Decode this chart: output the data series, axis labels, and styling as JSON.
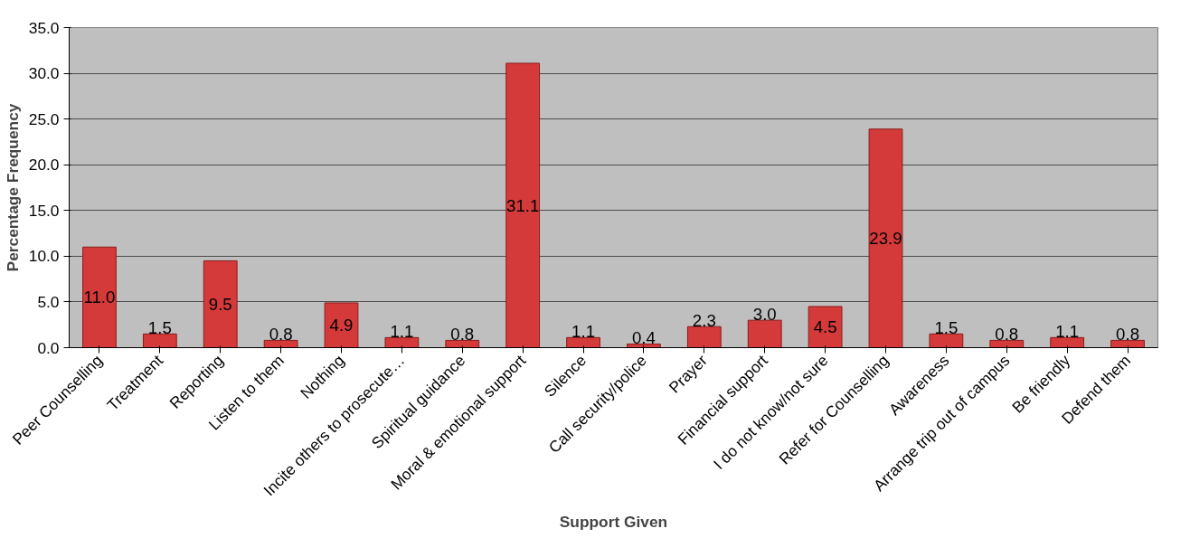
{
  "chart_data": {
    "type": "bar",
    "xlabel": "Support Given",
    "ylabel": "Percentage Frequency",
    "categories": [
      "Peer Counselling",
      "Treatment",
      "Reporting",
      "Listen to them",
      "Nothing",
      "Incite others to prosecute…",
      "Spiritual guidance",
      "Moral & emotional support",
      "Silence",
      "Call security/police",
      "Prayer",
      "Financial support",
      "I do not know/not sure",
      "Refer for Counselling",
      "Awareness",
      "Arrange trip out of campus",
      "Be friendly",
      "Defend them"
    ],
    "values": [
      11.0,
      1.5,
      9.5,
      0.8,
      4.9,
      1.1,
      0.8,
      31.1,
      1.1,
      0.4,
      2.3,
      3.0,
      4.5,
      23.9,
      1.5,
      0.8,
      1.1,
      0.8
    ],
    "color": "#d43a3a",
    "ylim": [
      0,
      35
    ],
    "yticks": [
      {
        "value": 0,
        "label": "0.0"
      },
      {
        "value": 5,
        "label": "5.0"
      },
      {
        "value": 10,
        "label": "10.0"
      },
      {
        "value": 15,
        "label": "15.0"
      },
      {
        "value": 20,
        "label": "20.0"
      },
      {
        "value": 25,
        "label": "25.0"
      },
      {
        "value": 30,
        "label": "30.0"
      },
      {
        "value": 35,
        "label": "35.0"
      }
    ],
    "value_labels": [
      "11.0",
      "1.5",
      "9.5",
      "0.8",
      "4.9",
      "1.1",
      "0.8",
      "31.1",
      "1.1",
      "0.4",
      "2.3",
      "3.0",
      "4.5",
      "23.9",
      "1.5",
      "0.8",
      "1.1",
      "0.8"
    ],
    "grid": "y"
  }
}
